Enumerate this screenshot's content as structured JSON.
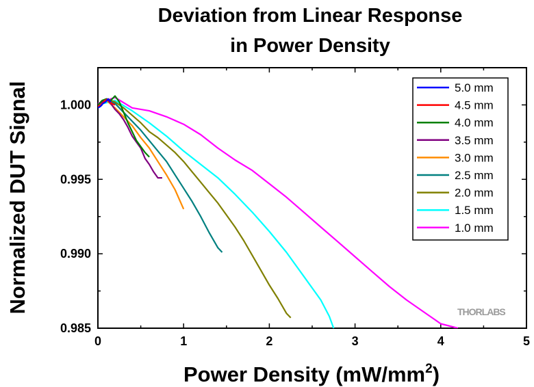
{
  "chart_data": {
    "type": "line",
    "title_line1": "Deviation from Linear Response",
    "title_line2": "in Power Density",
    "xlabel": "Power Density (mW/mm",
    "xlabel_sup": "2",
    "xlabel_end": ")",
    "ylabel": "Normalized DUT Signal",
    "xlim": [
      0,
      5
    ],
    "ylim": [
      0.985,
      1.0025
    ],
    "x_ticks": [
      "0",
      "1",
      "2",
      "3",
      "4",
      "5"
    ],
    "y_ticks": [
      "1.000",
      "0.995",
      "0.990",
      "0.985"
    ],
    "legend_position": "top-right",
    "watermark": "THORLABS",
    "series": [
      {
        "name": "5.0 mm",
        "color": "#0000ff",
        "x": [
          0.0,
          0.03,
          0.06,
          0.09,
          0.12,
          0.15
        ],
        "y": [
          0.9998,
          0.9999,
          1.0001,
          1.0002,
          1.0004,
          1.0002
        ]
      },
      {
        "name": "4.5 mm",
        "color": "#ff0000",
        "x": [
          0.0,
          0.04,
          0.08,
          0.12,
          0.16,
          0.2
        ],
        "y": [
          0.9999,
          1.0,
          1.0003,
          1.0004,
          1.0001,
          1.0
        ]
      },
      {
        "name": "4.0 mm",
        "color": "#008000",
        "x": [
          0.0,
          0.05,
          0.1,
          0.15,
          0.2,
          0.25,
          0.3,
          0.35,
          0.4,
          0.45,
          0.5,
          0.55,
          0.6
        ],
        "y": [
          1.0,
          1.0003,
          1.0004,
          1.0003,
          1.0006,
          1.0002,
          0.9995,
          0.9988,
          0.9982,
          0.9976,
          0.9972,
          0.9968,
          0.9965
        ]
      },
      {
        "name": "3.5 mm",
        "color": "#800080",
        "x": [
          0.0,
          0.05,
          0.1,
          0.15,
          0.2,
          0.25,
          0.3,
          0.35,
          0.4,
          0.45,
          0.5,
          0.55,
          0.6,
          0.65,
          0.7,
          0.75
        ],
        "y": [
          1.0,
          1.0002,
          1.0004,
          1.0001,
          0.9997,
          0.9994,
          0.999,
          0.9985,
          0.9979,
          0.9975,
          0.9971,
          0.9964,
          0.996,
          0.9955,
          0.9951,
          0.9951
        ]
      },
      {
        "name": "3.0 mm",
        "color": "#ff8c00",
        "x": [
          0.0,
          0.1,
          0.2,
          0.3,
          0.4,
          0.5,
          0.6,
          0.7,
          0.8,
          0.9,
          1.0
        ],
        "y": [
          1.0,
          1.0003,
          0.9998,
          0.9992,
          0.9986,
          0.9978,
          0.9971,
          0.9962,
          0.9953,
          0.9943,
          0.993
        ]
      },
      {
        "name": "2.5 mm",
        "color": "#008080",
        "x": [
          0.0,
          0.1,
          0.2,
          0.3,
          0.4,
          0.5,
          0.6,
          0.7,
          0.8,
          0.9,
          1.0,
          1.1,
          1.2,
          1.3,
          1.4,
          1.45
        ],
        "y": [
          1.0,
          1.0003,
          1.0001,
          0.9995,
          0.9989,
          0.9983,
          0.9976,
          0.9969,
          0.9962,
          0.9953,
          0.9944,
          0.9935,
          0.9925,
          0.9914,
          0.9904,
          0.9901
        ]
      },
      {
        "name": "2.0 mm",
        "color": "#808000",
        "x": [
          0.0,
          0.1,
          0.2,
          0.3,
          0.4,
          0.5,
          0.6,
          0.7,
          0.8,
          0.9,
          1.0,
          1.1,
          1.2,
          1.3,
          1.4,
          1.5,
          1.6,
          1.7,
          1.8,
          1.9,
          2.0,
          2.1,
          2.2,
          2.25
        ],
        "y": [
          1.0,
          1.0004,
          1.0002,
          0.9998,
          0.9993,
          0.9988,
          0.9982,
          0.9978,
          0.9973,
          0.9968,
          0.9962,
          0.9955,
          0.9948,
          0.9941,
          0.9934,
          0.9926,
          0.9918,
          0.9909,
          0.9899,
          0.9889,
          0.9879,
          0.987,
          0.986,
          0.9857
        ]
      },
      {
        "name": "1.5 mm",
        "color": "#00ffff",
        "x": [
          0.0,
          0.2,
          0.4,
          0.6,
          0.8,
          1.0,
          1.2,
          1.4,
          1.6,
          1.8,
          2.0,
          2.2,
          2.4,
          2.6,
          2.7,
          2.75
        ],
        "y": [
          1.0,
          1.0003,
          0.9996,
          0.9988,
          0.9979,
          0.9969,
          0.996,
          0.9951,
          0.994,
          0.9928,
          0.9915,
          0.9901,
          0.9885,
          0.9869,
          0.9858,
          0.985
        ]
      },
      {
        "name": "1.0 mm",
        "color": "#ff00ff",
        "x": [
          0.0,
          0.2,
          0.4,
          0.6,
          0.8,
          1.0,
          1.2,
          1.4,
          1.6,
          1.8,
          2.0,
          2.2,
          2.4,
          2.6,
          2.8,
          3.0,
          3.2,
          3.4,
          3.6,
          3.8,
          4.0,
          4.2
        ],
        "y": [
          1.0001,
          1.0005,
          0.9998,
          0.9996,
          0.9992,
          0.9987,
          0.998,
          0.9971,
          0.9963,
          0.9956,
          0.9947,
          0.9938,
          0.9928,
          0.9918,
          0.9908,
          0.9898,
          0.9888,
          0.9878,
          0.9869,
          0.9861,
          0.9853,
          0.985
        ]
      }
    ]
  }
}
